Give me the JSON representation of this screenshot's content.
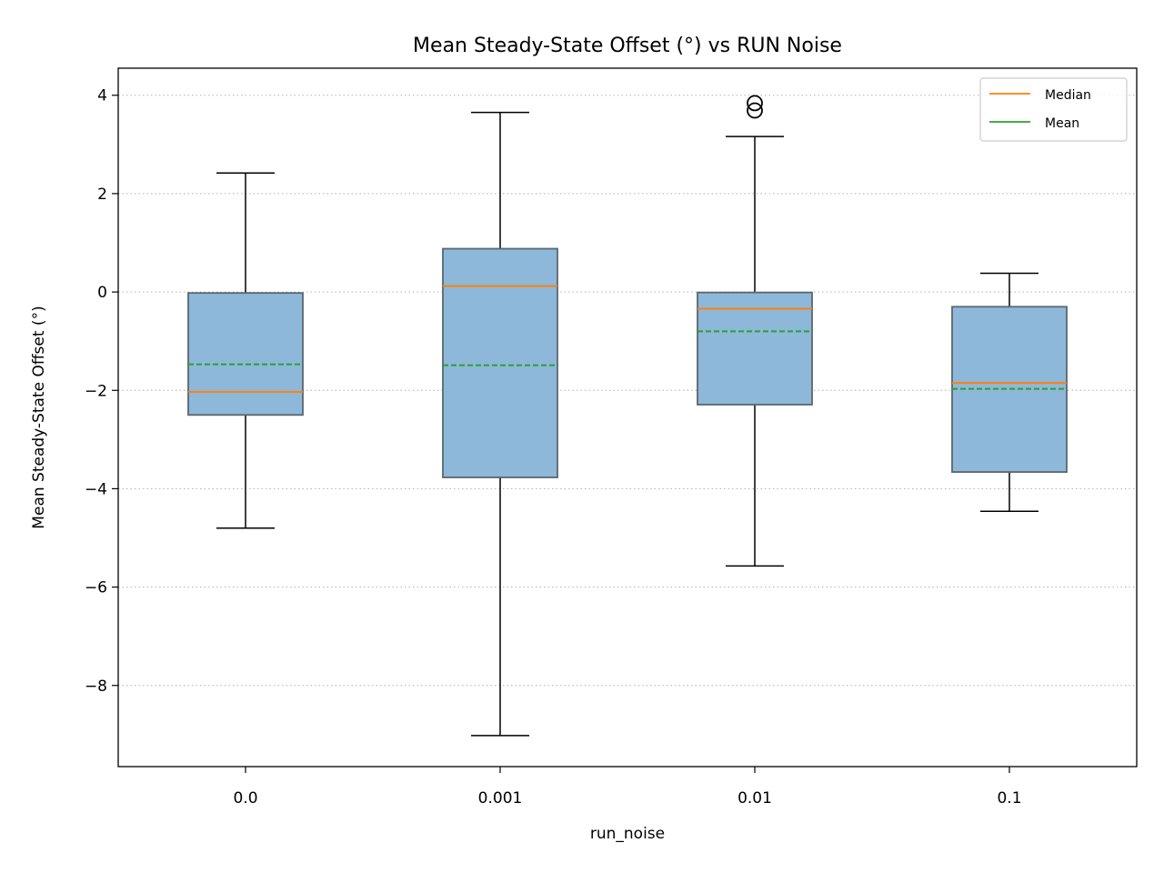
{
  "chart_data": {
    "type": "box",
    "title": "Mean Steady-State Offset (°) vs RUN Noise",
    "xlabel": "run_noise",
    "ylabel": "Mean Steady-State Offset (°)",
    "categories": [
      "0.0",
      "0.001",
      "0.01",
      "0.1"
    ],
    "ylim": [
      -9.65,
      4.55
    ],
    "yticks": [
      4,
      2,
      0,
      -2,
      -4,
      -6,
      -8
    ],
    "ytick_labels": [
      "4",
      "2",
      "0",
      "−2",
      "−4",
      "−6",
      "−8"
    ],
    "grid": "horizontal dotted",
    "legend": {
      "placement": "top-right",
      "entries": [
        {
          "label": "Median",
          "color": "#ff7f0e"
        },
        {
          "label": "Mean",
          "color": "#2ca02c"
        }
      ]
    },
    "boxes": [
      {
        "category": "0.0",
        "whisker_low": -4.8,
        "q1": -2.5,
        "median": -2.03,
        "mean": -1.47,
        "q3": -0.02,
        "whisker_high": 2.42,
        "outliers": []
      },
      {
        "category": "0.001",
        "whisker_low": -9.02,
        "q1": -3.77,
        "median": 0.12,
        "mean": -1.49,
        "q3": 0.88,
        "whisker_high": 3.65,
        "outliers": []
      },
      {
        "category": "0.01",
        "whisker_low": -5.57,
        "q1": -2.29,
        "median": -0.34,
        "mean": -0.8,
        "q3": -0.01,
        "whisker_high": 3.16,
        "outliers": [
          3.84,
          3.69
        ]
      },
      {
        "category": "0.1",
        "whisker_low": -4.46,
        "q1": -3.66,
        "median": -1.85,
        "mean": -1.97,
        "q3": -0.3,
        "whisker_high": 0.38,
        "outliers": []
      }
    ],
    "colors": {
      "box_fill": "#8db8d9",
      "box_edge": "#5a6670",
      "median": "#ff7f0e",
      "mean": "#2ca02c",
      "whisker": "#000000",
      "grid": "#b0b0b0"
    }
  }
}
